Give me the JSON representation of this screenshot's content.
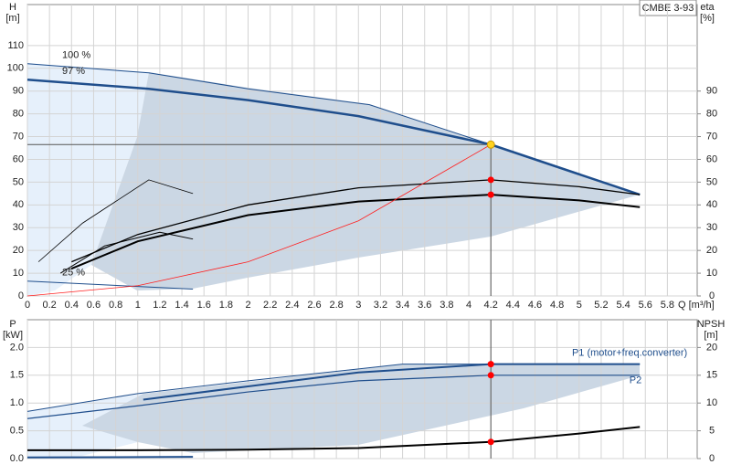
{
  "chart_data": [
    {
      "type": "line",
      "title": "CMBE 3-93",
      "ylabel": "H",
      "yunit": "[m]",
      "y2label": "eta",
      "y2unit": "[%]",
      "xlabel": "Q [m³/h]",
      "xlim": [
        0,
        6.07
      ],
      "xticks": [
        0,
        0.2,
        0.4,
        0.6,
        0.8,
        1,
        1.2,
        1.4,
        1.6,
        1.8,
        2,
        2.2,
        2.4,
        2.6,
        2.8,
        3,
        3.2,
        3.4,
        3.6,
        3.8,
        4,
        4.2,
        4.4,
        4.6,
        4.8,
        5,
        5.2,
        5.4,
        5.6,
        5.8
      ],
      "ylim": [
        0,
        128
      ],
      "yticks": [
        0,
        10,
        20,
        30,
        40,
        50,
        60,
        70,
        80,
        90,
        100,
        110
      ],
      "y2lim": [
        0,
        128
      ],
      "y2ticks": [
        0,
        10,
        20,
        30,
        40,
        50,
        60,
        70,
        80,
        90
      ],
      "grid": true,
      "xtick_labels": true,
      "operating_point": {
        "x": 4.2,
        "y": 66.5,
        "color": "#ffd21f"
      },
      "series": [
        {
          "name": "100 %",
          "label": "start",
          "color": "#1f4e8c",
          "width": 1,
          "x": [
            0,
            1.1,
            2,
            3.1,
            4.2,
            5.55
          ],
          "values": [
            102,
            98,
            91,
            84,
            66.5,
            44.5
          ]
        },
        {
          "name": "97 %",
          "label": "start",
          "color": "#1f4e8c",
          "width": 2.5,
          "x": [
            0,
            1.1,
            2,
            3,
            4.2,
            5.55
          ],
          "values": [
            95,
            91,
            86,
            79,
            66.5,
            44.5
          ]
        },
        {
          "name": "25 %",
          "label": "start",
          "color": "#1f4e8c",
          "width": 1,
          "x": [
            0,
            1.5
          ],
          "values": [
            6.5,
            3
          ]
        },
        {
          "color": "#000000",
          "width": 1.3,
          "axis": "y2",
          "x": [
            0.4,
            1,
            2,
            3,
            4.2,
            5,
            5.55
          ],
          "values": [
            15,
            27,
            40,
            47.5,
            51,
            48,
            44.5
          ]
        },
        {
          "color": "#000000",
          "width": 2,
          "x": [
            0.4,
            1,
            2,
            3,
            4.2,
            5,
            5.55
          ],
          "values": [
            12,
            24,
            35.5,
            41.5,
            44.5,
            42,
            39
          ]
        },
        {
          "color": "#000000",
          "width": 0.8,
          "x": [
            0.1,
            0.5,
            1.1,
            1.5
          ],
          "values": [
            15,
            32,
            51,
            45
          ]
        },
        {
          "color": "#000000",
          "width": 1,
          "x": [
            0.3,
            0.7,
            1.2,
            1.5
          ],
          "values": [
            10,
            22,
            28,
            25
          ]
        },
        {
          "color": "#ff2020",
          "width": 0.8,
          "x": [
            0,
            1,
            2,
            3,
            4.2
          ],
          "values": [
            0,
            4.5,
            15,
            33,
            66.5
          ]
        },
        {
          "color": "#ff0000",
          "marker": true,
          "x": [
            4.2,
            4.2
          ],
          "values": [
            51,
            44.5
          ]
        }
      ]
    },
    {
      "type": "line",
      "ylabel": "P",
      "yunit": "[kW]",
      "y2label": "NPSH",
      "y2unit": "[m]",
      "xlim": [
        0,
        6.07
      ],
      "xticks": [
        0,
        0.2,
        0.4,
        0.6,
        0.8,
        1,
        1.2,
        1.4,
        1.6,
        1.8,
        2,
        2.2,
        2.4,
        2.6,
        2.8,
        3,
        3.2,
        3.4,
        3.6,
        3.8,
        4,
        4.2,
        4.4,
        4.6,
        4.8,
        5,
        5.2,
        5.4,
        5.6,
        5.8
      ],
      "ylim": [
        0,
        2.5
      ],
      "yticks": [
        {
          "value": 0,
          "label": "0.0"
        },
        0.5,
        {
          "value": 1,
          "label": "1.0"
        },
        1.5,
        {
          "value": 2,
          "label": "2.0"
        }
      ],
      "y2lim": [
        0,
        25
      ],
      "y2ticks": [
        0,
        5,
        10,
        15,
        20
      ],
      "grid": true,
      "xtick_labels": false,
      "vline": 4.2,
      "series": [
        {
          "color": "#1f4e8c",
          "width": 1,
          "x": [
            0,
            1,
            2,
            3.4,
            4.2,
            5.55
          ],
          "values": [
            0.85,
            1.17,
            1.4,
            1.7,
            1.7,
            1.7
          ]
        },
        {
          "name": "P1 (motor+freq.converter)",
          "label": "end-above",
          "color": "#1f4e8c",
          "width": 2,
          "x": [
            1.05,
            2,
            3,
            4.2,
            5.55
          ],
          "values": [
            1.06,
            1.3,
            1.55,
            1.7,
            1.7
          ]
        },
        {
          "name": "P2",
          "label": "end-below",
          "color": "#1f4e8c",
          "width": 1.2,
          "x": [
            0,
            1,
            2,
            3,
            4.2,
            5.55
          ],
          "values": [
            0.72,
            0.95,
            1.2,
            1.4,
            1.5,
            1.5
          ]
        },
        {
          "color": "#1f4e8c",
          "width": 2,
          "x": [
            0,
            1.5
          ],
          "values": [
            0.02,
            0.03
          ]
        },
        {
          "color": "#000000",
          "width": 2,
          "axis": "y2",
          "x": [
            0,
            1,
            2,
            3,
            4.2,
            5,
            5.55
          ],
          "values": [
            1.5,
            1.5,
            1.6,
            1.9,
            3,
            4.5,
            5.7
          ]
        },
        {
          "color": "#ff0000",
          "marker": true,
          "x": [
            4.2,
            4.2
          ],
          "values": [
            1.7,
            1.5
          ]
        },
        {
          "color": "#ff0000",
          "marker": true,
          "axis": "y2",
          "x": [
            4.2
          ],
          "values": [
            3
          ]
        }
      ]
    }
  ]
}
